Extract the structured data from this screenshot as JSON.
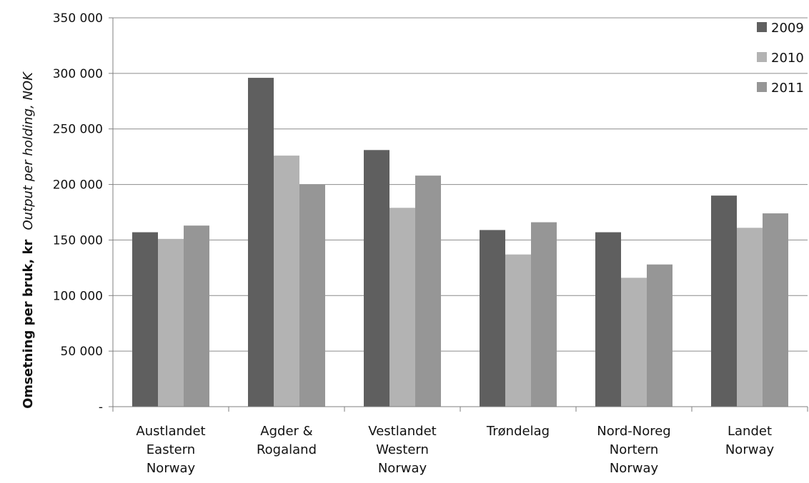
{
  "chart_data": {
    "type": "bar",
    "title": "",
    "xlabel": "",
    "ylabel": "Omsetning per bruk, kr",
    "ylabel_italic": "Output per holding, NOK",
    "ylim": [
      0,
      350000
    ],
    "yticks": [
      {
        "value": 0,
        "label": "-"
      },
      {
        "value": 50000,
        "label": "50 000"
      },
      {
        "value": 100000,
        "label": "100 000"
      },
      {
        "value": 150000,
        "label": "150 000"
      },
      {
        "value": 200000,
        "label": "200 000"
      },
      {
        "value": 250000,
        "label": "250 000"
      },
      {
        "value": 300000,
        "label": "300 000"
      },
      {
        "value": 350000,
        "label": "350 000"
      }
    ],
    "grid": true,
    "legend_position": "top-right",
    "categories": [
      [
        "Austlandet",
        "Eastern",
        "Norway"
      ],
      [
        "Agder &",
        "Rogaland"
      ],
      [
        "Vestlandet",
        "Western",
        "Norway"
      ],
      [
        "Trøndelag"
      ],
      [
        "Nord-Noreg",
        "Nortern",
        "Norway"
      ],
      [
        "Landet",
        "Norway"
      ]
    ],
    "series": [
      {
        "name": "2009",
        "color": "#5f5f5f",
        "values": [
          157000,
          296000,
          231000,
          159000,
          157000,
          190000
        ]
      },
      {
        "name": "2010",
        "color": "#b3b3b3",
        "values": [
          151000,
          226000,
          179000,
          137000,
          116000,
          161000
        ]
      },
      {
        "name": "2011",
        "color": "#969696",
        "values": [
          163000,
          200000,
          208000,
          166000,
          128000,
          174000
        ]
      }
    ]
  }
}
